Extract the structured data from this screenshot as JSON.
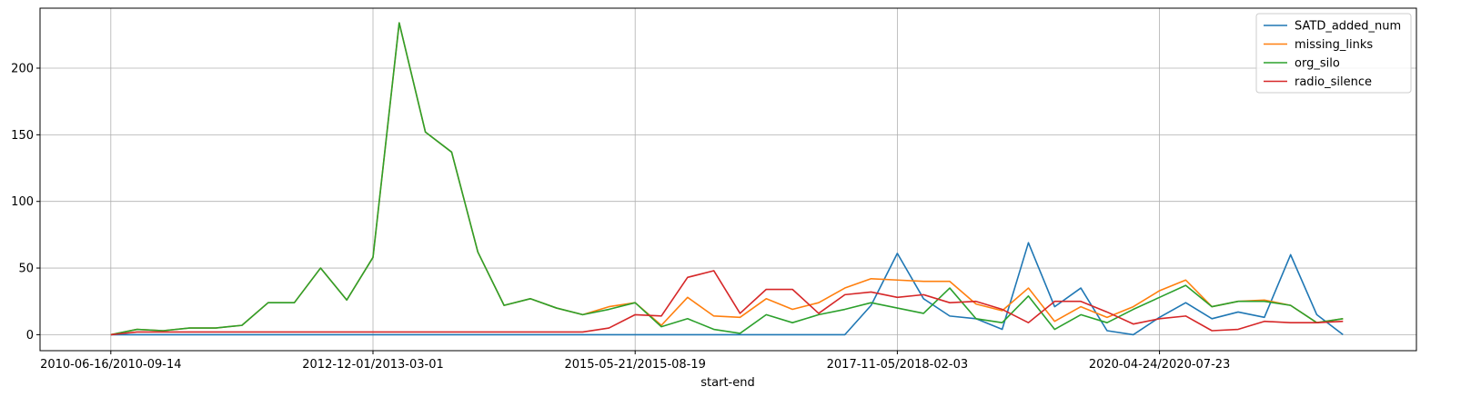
{
  "chart_data": {
    "type": "line",
    "title": "",
    "xlabel": "start-end",
    "ylabel": "",
    "grid": true,
    "legend_placement": "top-right",
    "ylim": [
      -12,
      245
    ],
    "xlim": [
      -2.7,
      49.8
    ],
    "x_tick_positions": [
      0,
      10,
      20,
      30,
      40
    ],
    "x_tick_labels": [
      "2010-06-16/2010-09-14",
      "2012-12-01/2013-03-01",
      "2015-05-21/2015-08-19",
      "2017-11-05/2018-02-03",
      "2020-04-24/2020-07-23"
    ],
    "y_ticks": [
      0,
      50,
      100,
      150,
      200
    ],
    "series": [
      {
        "name": "SATD_added_num",
        "color": "#1f77b4",
        "values": [
          0,
          0,
          0,
          0,
          0,
          0,
          0,
          0,
          0,
          0,
          0,
          0,
          0,
          0,
          0,
          0,
          0,
          0,
          0,
          0,
          0,
          0,
          0,
          0,
          0,
          0,
          0,
          0,
          0,
          22,
          61,
          27,
          14,
          12,
          4,
          69,
          21,
          35,
          3,
          0,
          13,
          24,
          12,
          17,
          13,
          60,
          15,
          0
        ]
      },
      {
        "name": "missing_links",
        "color": "#ff7f0e",
        "values": [
          0,
          4,
          3,
          5,
          5,
          7,
          24,
          24,
          50,
          26,
          58,
          234,
          152,
          137,
          62,
          22,
          27,
          20,
          15,
          21,
          24,
          7,
          28,
          14,
          13,
          27,
          19,
          24,
          35,
          42,
          41,
          40,
          40,
          23,
          18,
          35,
          10,
          21,
          13,
          21,
          33,
          41,
          21,
          25,
          26,
          22,
          9,
          12
        ]
      },
      {
        "name": "org_silo",
        "color": "#2ca02c",
        "values": [
          0,
          4,
          3,
          5,
          5,
          7,
          24,
          24,
          50,
          26,
          58,
          234,
          152,
          137,
          62,
          22,
          27,
          20,
          15,
          19,
          24,
          6,
          12,
          4,
          1,
          15,
          9,
          15,
          19,
          24,
          20,
          16,
          35,
          12,
          9,
          29,
          4,
          15,
          9,
          19,
          28,
          37,
          21,
          25,
          25,
          22,
          9,
          12
        ]
      },
      {
        "name": "radio_silence",
        "color": "#d62728",
        "values": [
          0,
          2,
          2,
          2,
          2,
          2,
          2,
          2,
          2,
          2,
          2,
          2,
          2,
          2,
          2,
          2,
          2,
          2,
          2,
          5,
          15,
          14,
          43,
          48,
          16,
          34,
          34,
          16,
          30,
          32,
          28,
          30,
          24,
          25,
          19,
          9,
          25,
          25,
          17,
          8,
          12,
          14,
          3,
          4,
          10,
          9,
          9,
          10
        ]
      }
    ]
  }
}
